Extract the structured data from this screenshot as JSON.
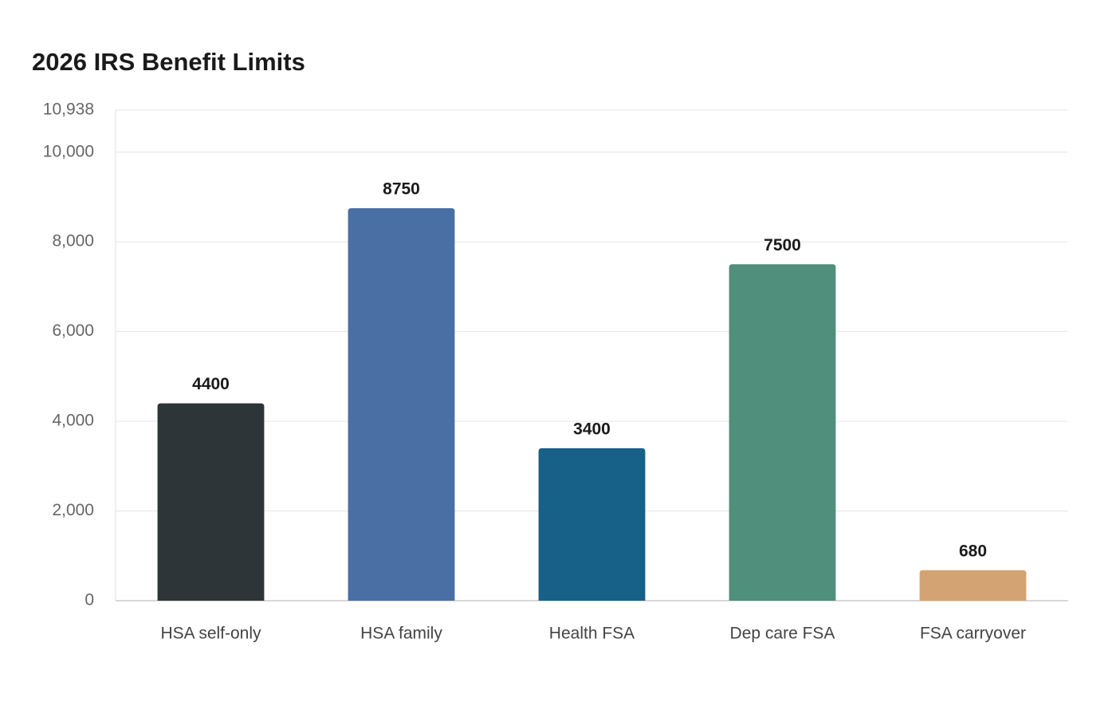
{
  "chart_data": {
    "type": "bar",
    "title": "2026 IRS Benefit Limits",
    "xlabel": "",
    "ylabel": "",
    "categories": [
      "HSA self-only",
      "HSA family",
      "Health FSA",
      "Dep care FSA",
      "FSA carryover"
    ],
    "values": [
      4400,
      8750,
      3400,
      7500,
      680
    ],
    "colors": [
      "#2e3538",
      "#4a6fa5",
      "#176087",
      "#4f8f7b",
      "#d4a373"
    ],
    "ylim": [
      0,
      10938
    ],
    "yticks": [
      0,
      2000,
      4000,
      6000,
      8000,
      10000,
      10938
    ],
    "ytick_labels": [
      "0",
      "2,000",
      "4,000",
      "6,000",
      "8,000",
      "10,000",
      "10,938"
    ],
    "grid": true,
    "data_labels": true
  }
}
